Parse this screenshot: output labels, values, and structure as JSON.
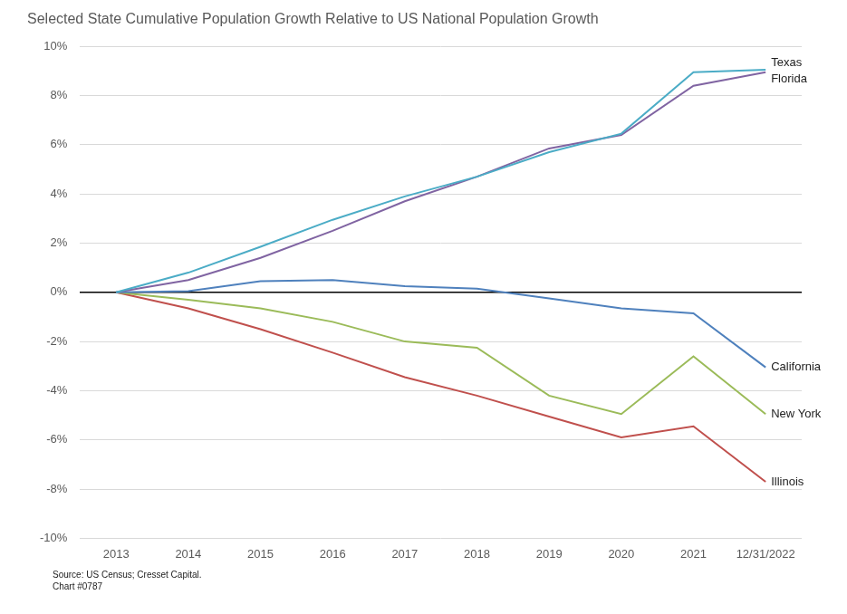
{
  "chart_data": {
    "type": "line",
    "title": "Selected State Cumulative Population Growth Relative to US National Population Growth",
    "source": [
      "Source: US Census; Cresset Capital.",
      "Chart #0787"
    ],
    "categories": [
      "2013",
      "2014",
      "2015",
      "2016",
      "2017",
      "2018",
      "2019",
      "2020",
      "2021",
      "12/31/2022"
    ],
    "series": [
      {
        "name": "Texas",
        "color": "#4bacc6",
        "values": [
          0,
          0.8,
          1.85,
          2.95,
          3.9,
          4.7,
          5.7,
          6.45,
          8.95,
          9.05
        ]
      },
      {
        "name": "Florida",
        "color": "#8064a2",
        "values": [
          0,
          0.5,
          1.4,
          2.5,
          3.7,
          4.7,
          5.85,
          6.4,
          8.4,
          8.95
        ]
      },
      {
        "name": "California",
        "color": "#4f81bd",
        "values": [
          0,
          0.05,
          0.45,
          0.5,
          0.25,
          0.15,
          -0.25,
          -0.65,
          -0.85,
          -3.05
        ]
      },
      {
        "name": "New York",
        "color": "#9bbb59",
        "values": [
          0,
          -0.3,
          -0.65,
          -1.2,
          -2.0,
          -2.25,
          -4.2,
          -4.95,
          -2.6,
          -4.95
        ]
      },
      {
        "name": "Illinois",
        "color": "#c0504d",
        "values": [
          0,
          -0.65,
          -1.5,
          -2.45,
          -3.45,
          -4.2,
          -5.05,
          -5.9,
          -5.45,
          -7.7
        ]
      }
    ],
    "ylim": [
      -10,
      10
    ],
    "yticks": [
      {
        "value": -10,
        "label": "-10%"
      },
      {
        "value": -8,
        "label": "-8%"
      },
      {
        "value": -6,
        "label": "-6%"
      },
      {
        "value": -4,
        "label": "-4%"
      },
      {
        "value": -2,
        "label": "-2%"
      },
      {
        "value": 0,
        "label": "0%"
      },
      {
        "value": 2,
        "label": "2%"
      },
      {
        "value": 4,
        "label": "4%"
      },
      {
        "value": 6,
        "label": "6%"
      },
      {
        "value": 8,
        "label": "8%"
      },
      {
        "value": 10,
        "label": "10%"
      }
    ],
    "grid": true,
    "legend": false
  }
}
